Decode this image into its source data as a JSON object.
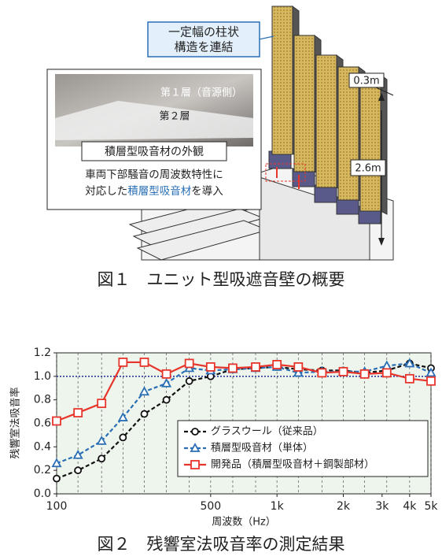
{
  "figure1": {
    "callout": [
      "一定幅の柱状",
      "構造を連結"
    ],
    "width_label": "0.3m",
    "height_label": "2.6m",
    "photo_labels": [
      "第１層（音源側）",
      "第２層"
    ],
    "photo_caption": "積層型吸音材の外観",
    "description": [
      "車両下部騒音の周波数特性に",
      [
        "対応した",
        "積層型吸音材",
        "を導入"
      ]
    ],
    "caption": "図１　ユニット型吸遮音壁の概要"
  },
  "chart_data": {
    "type": "line",
    "caption": "図２　残響室法吸音率の測定結果",
    "x_label": "周波数（Hz）",
    "y_label": "残響室法吸音率",
    "x": [
      100,
      125,
      160,
      200,
      250,
      315,
      400,
      500,
      630,
      800,
      1000,
      1250,
      1600,
      2000,
      2500,
      3150,
      4000,
      5000
    ],
    "xscale": "log",
    "xlim": [
      100,
      5000
    ],
    "xticks": [
      100,
      500,
      {
        "value": 1000,
        "label": "1k"
      },
      {
        "value": 2000,
        "label": "2k"
      },
      {
        "value": 3000,
        "label": "3k"
      },
      {
        "value": 4000,
        "label": "4k"
      },
      {
        "value": 5000,
        "label": "5k"
      }
    ],
    "ylim": [
      0,
      1.2
    ],
    "yticks": [
      {
        "value": 0,
        "label": "0.0"
      },
      0.2,
      0.4,
      0.6,
      0.8,
      {
        "value": 1,
        "label": "1.0"
      },
      1.2
    ],
    "reference_line": 1,
    "grid": true,
    "legend": "lower right",
    "series": [
      {
        "name": "グラスウール（従来品）",
        "color": "#111111",
        "marker": "circle",
        "linestyle": "dashed",
        "values": [
          0.13,
          0.2,
          0.3,
          0.48,
          0.68,
          0.8,
          0.96,
          1.0,
          1.06,
          1.07,
          1.08,
          1.06,
          1.05,
          1.05,
          1.03,
          1.05,
          1.11,
          1.07
        ]
      },
      {
        "name": "積層型吸音材（単体）",
        "color": "#2a6fb5",
        "marker": "triangle",
        "linestyle": "dashed",
        "values": [
          0.26,
          0.33,
          0.45,
          0.65,
          0.87,
          0.94,
          1.07,
          1.05,
          1.06,
          1.07,
          1.08,
          1.03,
          1.04,
          1.04,
          1.04,
          1.09,
          1.11,
          1.03
        ]
      },
      {
        "name": "開発品（積層型吸音材＋鋼製部材）",
        "color": "#e8352b",
        "marker": "square",
        "linestyle": "solid",
        "values": [
          0.62,
          0.69,
          0.77,
          1.12,
          1.12,
          1.02,
          1.11,
          1.08,
          1.07,
          1.08,
          1.1,
          1.08,
          1.03,
          1.04,
          1.02,
          1.03,
          0.98,
          0.96
        ]
      }
    ]
  }
}
